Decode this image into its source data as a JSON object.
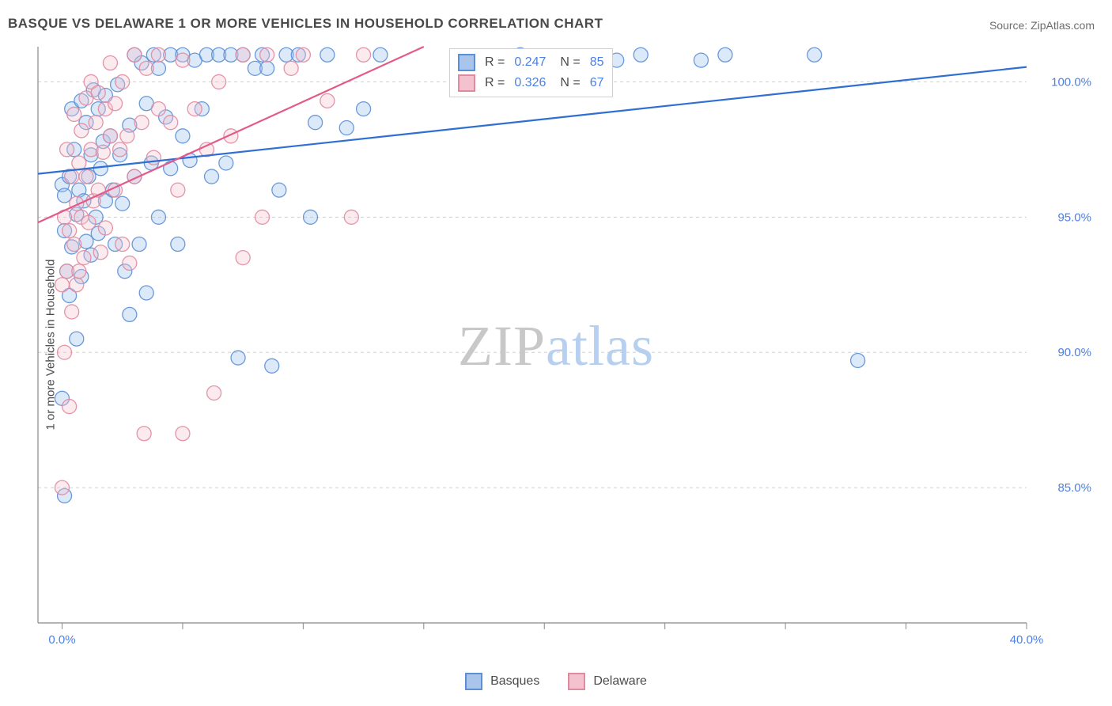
{
  "title": "BASQUE VS DELAWARE 1 OR MORE VEHICLES IN HOUSEHOLD CORRELATION CHART",
  "source_label": "Source: ZipAtlas.com",
  "y_axis_label": "1 or more Vehicles in Household",
  "watermark": {
    "part_a": "ZIP",
    "part_b": "atlas"
  },
  "chart": {
    "type": "scatter",
    "background_color": "#ffffff",
    "axis_color": "#888888",
    "grid_color": "#d0d0d0",
    "tick_color": "#888888",
    "tick_label_color": "#4c7fe4",
    "x_domain": [
      -1,
      40
    ],
    "y_domain": [
      80,
      101.3
    ],
    "x_ticks": [
      0,
      5,
      10,
      15,
      20,
      25,
      30,
      35,
      40
    ],
    "x_tick_labels": {
      "0": "0.0%",
      "40": "40.0%"
    },
    "y_ticks": [
      85.0,
      90.0,
      95.0,
      100.0
    ],
    "y_tick_labels": [
      "85.0%",
      "90.0%",
      "95.0%",
      "100.0%"
    ],
    "tick_fontsize": 15,
    "marker_radius": 9,
    "marker_opacity": 0.35,
    "marker_stroke_opacity": 0.9,
    "marker_stroke_width": 1.3,
    "series": [
      {
        "name": "Basques",
        "fill_color": "#9cc0ee",
        "stroke_color": "#5b8fd6",
        "line_color": "#2f6fd2",
        "line_width": 2.2,
        "regression": {
          "x1": -1,
          "y1": 96.6,
          "x2": 40,
          "y2": 100.55
        },
        "points": [
          [
            0,
            88.3
          ],
          [
            0,
            96.2
          ],
          [
            0.1,
            84.7
          ],
          [
            0.1,
            94.5
          ],
          [
            0.1,
            95.8
          ],
          [
            0.2,
            93.0
          ],
          [
            0.3,
            92.1
          ],
          [
            0.3,
            96.5
          ],
          [
            0.4,
            93.9
          ],
          [
            0.4,
            99.0
          ],
          [
            0.5,
            97.5
          ],
          [
            0.6,
            90.5
          ],
          [
            0.6,
            95.1
          ],
          [
            0.7,
            96.0
          ],
          [
            0.8,
            92.8
          ],
          [
            0.8,
            99.3
          ],
          [
            0.9,
            95.6
          ],
          [
            1.0,
            94.1
          ],
          [
            1.0,
            98.5
          ],
          [
            1.1,
            96.5
          ],
          [
            1.2,
            93.6
          ],
          [
            1.2,
            97.3
          ],
          [
            1.3,
            99.7
          ],
          [
            1.4,
            95.0
          ],
          [
            1.5,
            94.4
          ],
          [
            1.5,
            99.0
          ],
          [
            1.6,
            96.8
          ],
          [
            1.7,
            97.8
          ],
          [
            1.8,
            95.6
          ],
          [
            1.8,
            99.5
          ],
          [
            2.0,
            98.0
          ],
          [
            2.1,
            96.0
          ],
          [
            2.2,
            94.0
          ],
          [
            2.3,
            99.9
          ],
          [
            2.4,
            97.3
          ],
          [
            2.5,
            95.5
          ],
          [
            2.6,
            93.0
          ],
          [
            2.8,
            91.4
          ],
          [
            2.8,
            98.4
          ],
          [
            3.0,
            96.5
          ],
          [
            3.0,
            101.0
          ],
          [
            3.2,
            94.0
          ],
          [
            3.3,
            100.7
          ],
          [
            3.5,
            92.2
          ],
          [
            3.5,
            99.2
          ],
          [
            3.7,
            97.0
          ],
          [
            3.8,
            101.0
          ],
          [
            4.0,
            95.0
          ],
          [
            4.0,
            100.5
          ],
          [
            4.3,
            98.7
          ],
          [
            4.5,
            96.8
          ],
          [
            4.5,
            101.0
          ],
          [
            4.8,
            94.0
          ],
          [
            5.0,
            98.0
          ],
          [
            5.0,
            101.0
          ],
          [
            5.3,
            97.1
          ],
          [
            5.5,
            100.8
          ],
          [
            5.8,
            99.0
          ],
          [
            6.0,
            101.0
          ],
          [
            6.2,
            96.5
          ],
          [
            6.5,
            101.0
          ],
          [
            6.8,
            97.0
          ],
          [
            7.0,
            101.0
          ],
          [
            7.3,
            89.8
          ],
          [
            7.5,
            101.0
          ],
          [
            8.0,
            100.5
          ],
          [
            8.3,
            101.0
          ],
          [
            8.5,
            100.5
          ],
          [
            8.7,
            89.5
          ],
          [
            9.0,
            96.0
          ],
          [
            9.3,
            101.0
          ],
          [
            9.8,
            101.0
          ],
          [
            10.3,
            95.0
          ],
          [
            10.5,
            98.5
          ],
          [
            11.0,
            101.0
          ],
          [
            11.8,
            98.3
          ],
          [
            12.5,
            99.0
          ],
          [
            13.2,
            101.0
          ],
          [
            19.0,
            101.0
          ],
          [
            23.0,
            100.8
          ],
          [
            24.0,
            101.0
          ],
          [
            27.5,
            101.0
          ],
          [
            31.2,
            101.0
          ],
          [
            33.0,
            89.7
          ],
          [
            26.5,
            100.8
          ]
        ]
      },
      {
        "name": "Delaware",
        "fill_color": "#f4c2cf",
        "stroke_color": "#e08aa0",
        "line_color": "#e35a88",
        "line_width": 2.2,
        "regression": {
          "x1": -1,
          "y1": 94.8,
          "x2": 15,
          "y2": 101.3
        },
        "points": [
          [
            0,
            85.0
          ],
          [
            0,
            92.5
          ],
          [
            0.1,
            90.0
          ],
          [
            0.1,
            95.0
          ],
          [
            0.2,
            93.0
          ],
          [
            0.2,
            97.5
          ],
          [
            0.3,
            88.0
          ],
          [
            0.3,
            94.5
          ],
          [
            0.4,
            91.5
          ],
          [
            0.4,
            96.5
          ],
          [
            0.5,
            94.0
          ],
          [
            0.5,
            98.8
          ],
          [
            0.6,
            92.5
          ],
          [
            0.6,
            95.5
          ],
          [
            0.7,
            93.0
          ],
          [
            0.7,
            97.0
          ],
          [
            0.8,
            95.0
          ],
          [
            0.8,
            98.2
          ],
          [
            0.9,
            93.5
          ],
          [
            1.0,
            96.5
          ],
          [
            1.0,
            99.4
          ],
          [
            1.1,
            94.8
          ],
          [
            1.2,
            97.5
          ],
          [
            1.2,
            100.0
          ],
          [
            1.3,
            95.6
          ],
          [
            1.4,
            98.5
          ],
          [
            1.5,
            96.0
          ],
          [
            1.5,
            99.6
          ],
          [
            1.6,
            93.7
          ],
          [
            1.7,
            97.4
          ],
          [
            1.8,
            99.0
          ],
          [
            1.8,
            94.6
          ],
          [
            2.0,
            98.0
          ],
          [
            2.0,
            100.7
          ],
          [
            2.2,
            96.0
          ],
          [
            2.2,
            99.2
          ],
          [
            2.4,
            97.5
          ],
          [
            2.5,
            94.0
          ],
          [
            2.5,
            100.0
          ],
          [
            2.7,
            98.0
          ],
          [
            2.8,
            93.3
          ],
          [
            3.0,
            96.5
          ],
          [
            3.0,
            101.0
          ],
          [
            3.3,
            98.5
          ],
          [
            3.4,
            87.0
          ],
          [
            3.5,
            100.5
          ],
          [
            3.8,
            97.2
          ],
          [
            4.0,
            99.0
          ],
          [
            4.0,
            101.0
          ],
          [
            4.5,
            98.5
          ],
          [
            4.8,
            96.0
          ],
          [
            5.0,
            100.8
          ],
          [
            5.0,
            87.0
          ],
          [
            5.5,
            99.0
          ],
          [
            6.0,
            97.5
          ],
          [
            6.3,
            88.5
          ],
          [
            6.5,
            100.0
          ],
          [
            7.0,
            98.0
          ],
          [
            7.5,
            101.0
          ],
          [
            7.5,
            93.5
          ],
          [
            8.3,
            95.0
          ],
          [
            8.5,
            101.0
          ],
          [
            9.5,
            100.5
          ],
          [
            10.0,
            101.0
          ],
          [
            11.0,
            99.3
          ],
          [
            12.0,
            95.0
          ],
          [
            12.5,
            101.0
          ]
        ]
      }
    ]
  },
  "stats_legend": {
    "border_color": "#d0d0d0",
    "rows": [
      {
        "swatch_fill": "#a9c5ec",
        "swatch_border": "#5b8fd6",
        "r": "0.247",
        "n": "85"
      },
      {
        "swatch_fill": "#f4c2cf",
        "swatch_border": "#e08aa0",
        "r": "0.326",
        "n": "67"
      }
    ],
    "label_R": "R =",
    "label_N": "N ="
  },
  "bottom_legend": {
    "items": [
      {
        "swatch_fill": "#a9c5ec",
        "swatch_border": "#5b8fd6",
        "label": "Basques"
      },
      {
        "swatch_fill": "#f4c2cf",
        "swatch_border": "#e08aa0",
        "label": "Delaware"
      }
    ]
  }
}
